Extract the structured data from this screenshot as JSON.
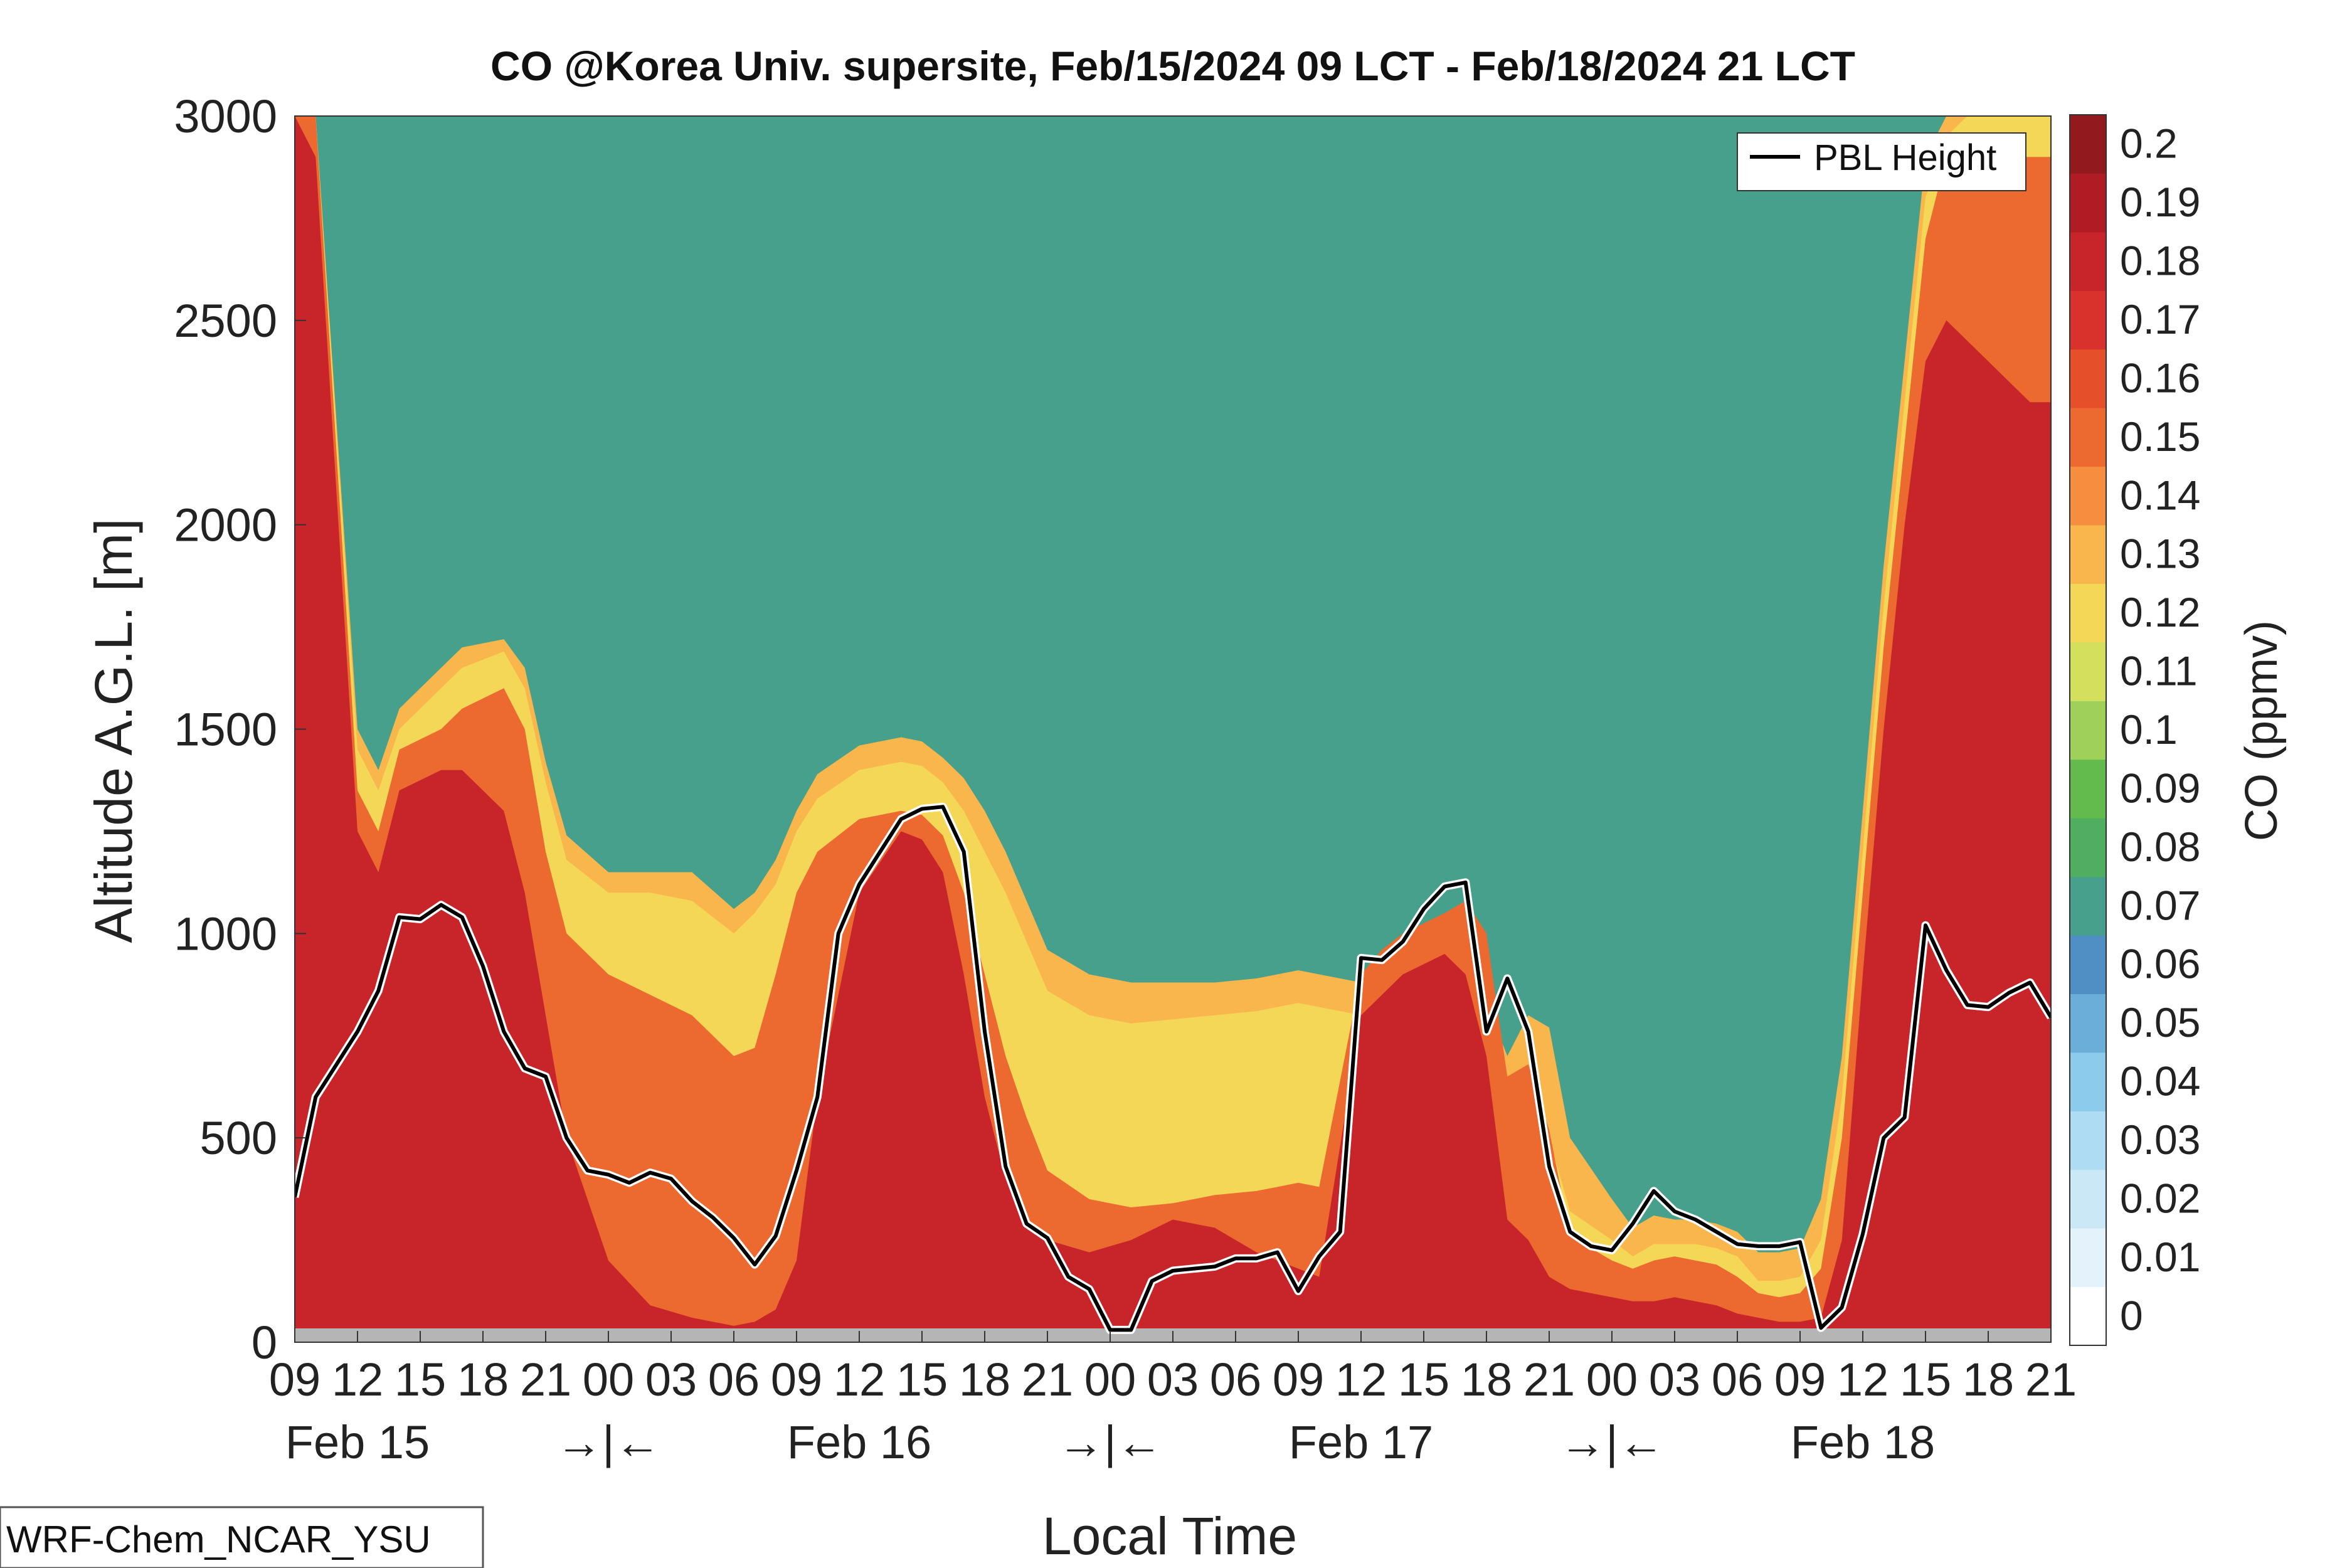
{
  "chart_data": {
    "type": "heatmap",
    "title": "CO @Korea Univ. supersite, Feb/15/2024 09 LCT - Feb/18/2024 21 LCT",
    "xlabel": "Local Time",
    "ylabel": "Altitude A.G.L. [m]",
    "colorbar_label": "CO (ppmv)",
    "model_label": "WRF-Chem_NCAR_YSU",
    "ylim": [
      0,
      3000
    ],
    "y_ticks": [
      "0",
      "500",
      "1000",
      "1500",
      "2000",
      "2500",
      "3000"
    ],
    "x_range_hours": [
      0,
      84
    ],
    "x_tick_labels": [
      "09",
      "12",
      "15",
      "18",
      "21",
      "00",
      "03",
      "06",
      "09",
      "12",
      "15",
      "18",
      "21",
      "00",
      "03",
      "06",
      "09",
      "12",
      "15",
      "18",
      "21",
      "00",
      "03",
      "06",
      "09",
      "12",
      "15",
      "18",
      "21"
    ],
    "day_labels": [
      "Feb 15",
      "→|←",
      "Feb 16",
      "→|←",
      "Feb 17",
      "→|←",
      "Feb 18"
    ],
    "legend": {
      "entries": [
        "PBL Height"
      ],
      "position": "top-right"
    },
    "colorbar": {
      "levels": [
        "0",
        "0.01",
        "0.02",
        "0.03",
        "0.04",
        "0.05",
        "0.06",
        "0.07",
        "0.08",
        "0.09",
        "0.1",
        "0.11",
        "0.12",
        "0.13",
        "0.14",
        "0.15",
        "0.16",
        "0.17",
        "0.18",
        "0.19",
        "0.2"
      ],
      "colors": [
        "#ffffff",
        "#e4f3fb",
        "#cae8f6",
        "#aedcf2",
        "#8dcbec",
        "#6aaed9",
        "#4f8fc4",
        "#46a08c",
        "#4fae60",
        "#62bb4c",
        "#9fd05a",
        "#d3e05e",
        "#f5d758",
        "#f9b64d",
        "#f58e3e",
        "#ec6a30",
        "#e5502b",
        "#d9312b",
        "#c8252a",
        "#b11c24",
        "#921a1f"
      ]
    },
    "series": [
      {
        "name": "PBL Height",
        "x": [
          0,
          1,
          2,
          3,
          4,
          5,
          6,
          7,
          8,
          9,
          10,
          11,
          12,
          13,
          14,
          15,
          16,
          17,
          18,
          19,
          20,
          21,
          22,
          23,
          24,
          25,
          26,
          27,
          28,
          29,
          30,
          31,
          32,
          33,
          34,
          35,
          36,
          37,
          38,
          39,
          40,
          41,
          42,
          43,
          44,
          45,
          46,
          47,
          48,
          49,
          50,
          51,
          52,
          53,
          54,
          55,
          56,
          57,
          58,
          59,
          60,
          61,
          62,
          63,
          64,
          65,
          66,
          67,
          68,
          69,
          70,
          71,
          72,
          73,
          74,
          75,
          76,
          77,
          78,
          79,
          80,
          81,
          82,
          83,
          84
        ],
        "values": [
          355,
          600,
          680,
          760,
          860,
          1040,
          1035,
          1070,
          1040,
          920,
          760,
          670,
          650,
          500,
          420,
          410,
          390,
          415,
          400,
          345,
          305,
          255,
          190,
          260,
          420,
          600,
          1000,
          1120,
          1200,
          1280,
          1305,
          1310,
          1200,
          760,
          430,
          290,
          255,
          160,
          130,
          30,
          30,
          150,
          175,
          180,
          185,
          205,
          205,
          220,
          125,
          210,
          270,
          940,
          935,
          980,
          1060,
          1115,
          1125,
          760,
          890,
          760,
          430,
          270,
          235,
          225,
          290,
          370,
          320,
          300,
          270,
          240,
          235,
          235,
          245,
          35,
          85,
          265,
          500,
          550,
          1020,
          910,
          825,
          820,
          855,
          880,
          795
        ]
      }
    ],
    "fields": [
      {
        "name": "low_layer",
        "value": 0.135,
        "x": [
          0,
          1,
          3,
          4,
          5,
          7,
          8,
          10,
          11,
          12,
          13,
          15,
          17,
          19,
          21,
          22,
          23,
          24,
          25,
          27,
          29,
          30,
          31,
          32,
          33,
          34,
          35,
          36,
          38,
          40,
          42,
          44,
          46,
          47,
          48,
          49,
          51,
          52,
          53,
          55,
          56,
          57,
          58,
          59,
          60,
          61,
          63,
          64,
          65,
          66,
          67,
          68,
          69,
          70,
          71,
          72,
          73,
          74,
          75,
          76,
          77,
          78,
          79,
          80,
          81,
          82,
          83,
          84
        ],
        "top": [
          3000,
          3000,
          1500,
          1400,
          1550,
          1650,
          1700,
          1720,
          1650,
          1420,
          1240,
          1150,
          1150,
          1150,
          1060,
          1100,
          1180,
          1300,
          1390,
          1460,
          1480,
          1470,
          1430,
          1380,
          1300,
          1200,
          1080,
          960,
          900,
          880,
          880,
          880,
          890,
          900,
          910,
          900,
          880,
          870,
          860,
          830,
          880,
          830,
          700,
          800,
          770,
          500,
          350,
          280,
          310,
          300,
          300,
          290,
          270,
          220,
          220,
          230,
          350,
          700,
          1300,
          1900,
          2400,
          2900,
          3000,
          3000,
          3000,
          3000,
          3000,
          3000
        ]
      },
      {
        "name": "yellow",
        "value": 0.12,
        "x": [
          0,
          1,
          3,
          4,
          5,
          7,
          8,
          10,
          11,
          12,
          13,
          15,
          17,
          19,
          21,
          22,
          23,
          24,
          25,
          27,
          29,
          30,
          31,
          32,
          33,
          34,
          35,
          36,
          38,
          40,
          42,
          44,
          46,
          47,
          48,
          49,
          51,
          52,
          53,
          55,
          56,
          57,
          58,
          59,
          60,
          61,
          63,
          64,
          65,
          66,
          67,
          68,
          69,
          70,
          71,
          72,
          73,
          74,
          75,
          76,
          77,
          78,
          79,
          80,
          81,
          82,
          83,
          84
        ],
        "top": [
          3000,
          3000,
          1450,
          1350,
          1500,
          1600,
          1650,
          1690,
          1600,
          1370,
          1180,
          1100,
          1100,
          1080,
          1000,
          1050,
          1120,
          1250,
          1330,
          1400,
          1420,
          1410,
          1370,
          1300,
          1200,
          1100,
          980,
          860,
          800,
          780,
          790,
          800,
          810,
          820,
          830,
          820,
          800,
          790,
          780,
          750,
          800,
          760,
          580,
          640,
          500,
          320,
          250,
          210,
          240,
          240,
          240,
          230,
          210,
          150,
          150,
          160,
          250,
          600,
          1200,
          1800,
          2300,
          2800,
          2950,
          3000,
          3000,
          3000,
          3000,
          3000
        ]
      },
      {
        "name": "midtone",
        "value": 0.15,
        "x": [
          0,
          1,
          3,
          4,
          5,
          7,
          8,
          10,
          11,
          12,
          13,
          15,
          17,
          19,
          21,
          22,
          23,
          24,
          25,
          27,
          29,
          30,
          31,
          32,
          33,
          34,
          35,
          36,
          38,
          40,
          42,
          44,
          46,
          47,
          48,
          49,
          51,
          52,
          53,
          55,
          56,
          57,
          58,
          59,
          60,
          61,
          63,
          64,
          65,
          66,
          67,
          68,
          69,
          70,
          71,
          72,
          73,
          74,
          75,
          76,
          77,
          78,
          79,
          80,
          81,
          82,
          83,
          84
        ],
        "top": [
          3000,
          3000,
          1350,
          1250,
          1450,
          1500,
          1550,
          1600,
          1500,
          1200,
          1000,
          900,
          850,
          800,
          700,
          720,
          900,
          1100,
          1200,
          1280,
          1300,
          1290,
          1240,
          1100,
          900,
          700,
          550,
          420,
          350,
          330,
          340,
          360,
          370,
          380,
          390,
          380,
          900,
          960,
          1000,
          1050,
          1080,
          1000,
          650,
          680,
          520,
          260,
          200,
          180,
          200,
          210,
          200,
          190,
          160,
          120,
          110,
          120,
          180,
          500,
          1100,
          1700,
          2200,
          2700,
          2900,
          2900,
          2900,
          2900,
          2900,
          2900
        ]
      },
      {
        "name": "red_core",
        "value": 0.18,
        "x": [
          0,
          1,
          3,
          4,
          5,
          7,
          8,
          10,
          11,
          12,
          13,
          15,
          17,
          19,
          21,
          22,
          23,
          24,
          25,
          27,
          29,
          30,
          31,
          32,
          33,
          34,
          35,
          36,
          38,
          40,
          42,
          44,
          46,
          47,
          48,
          49,
          51,
          52,
          53,
          55,
          56,
          57,
          58,
          59,
          60,
          61,
          63,
          64,
          65,
          66,
          67,
          68,
          69,
          70,
          71,
          72,
          73,
          74,
          75,
          76,
          77,
          78,
          79,
          80,
          81,
          82,
          83,
          84
        ],
        "top": [
          3000,
          2900,
          1250,
          1150,
          1350,
          1400,
          1400,
          1300,
          1100,
          800,
          500,
          200,
          90,
          60,
          40,
          50,
          80,
          200,
          600,
          1100,
          1250,
          1230,
          1150,
          900,
          600,
          400,
          300,
          250,
          220,
          250,
          300,
          280,
          220,
          200,
          180,
          160,
          800,
          850,
          900,
          950,
          900,
          700,
          300,
          250,
          160,
          130,
          110,
          100,
          100,
          110,
          100,
          90,
          70,
          60,
          50,
          50,
          60,
          250,
          900,
          1500,
          2000,
          2400,
          2500,
          2450,
          2400,
          2350,
          2300,
          2300
        ]
      }
    ]
  }
}
